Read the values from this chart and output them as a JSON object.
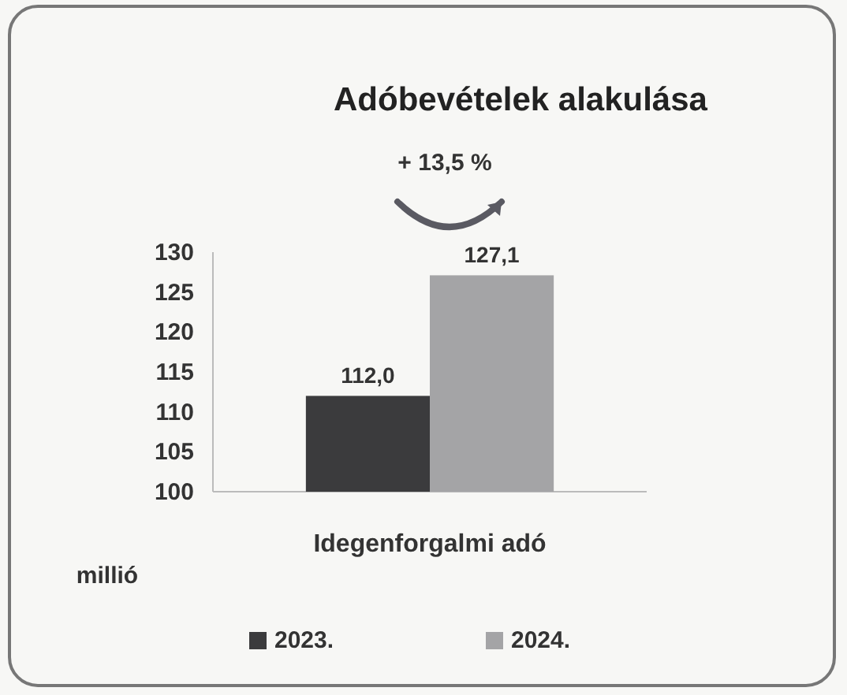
{
  "chart_data": {
    "type": "bar",
    "title": "Adóbevételek alakulása",
    "ylabel": "millió",
    "annotations": [
      "+ 13,5 %"
    ],
    "categories": [
      "Idegenforgalmi adó"
    ],
    "series": [
      {
        "name": "2023.",
        "color": "#3b3b3d",
        "values": [
          112.0
        ],
        "value_labels": [
          "112,0"
        ]
      },
      {
        "name": "2024.",
        "color": "#a4a4a6",
        "values": [
          127.1
        ],
        "value_labels": [
          "127,1"
        ]
      }
    ],
    "ylim": [
      100,
      130
    ],
    "yticks": [
      100,
      105,
      110,
      115,
      120,
      125,
      130
    ],
    "grid": false,
    "legend": "bottom"
  }
}
